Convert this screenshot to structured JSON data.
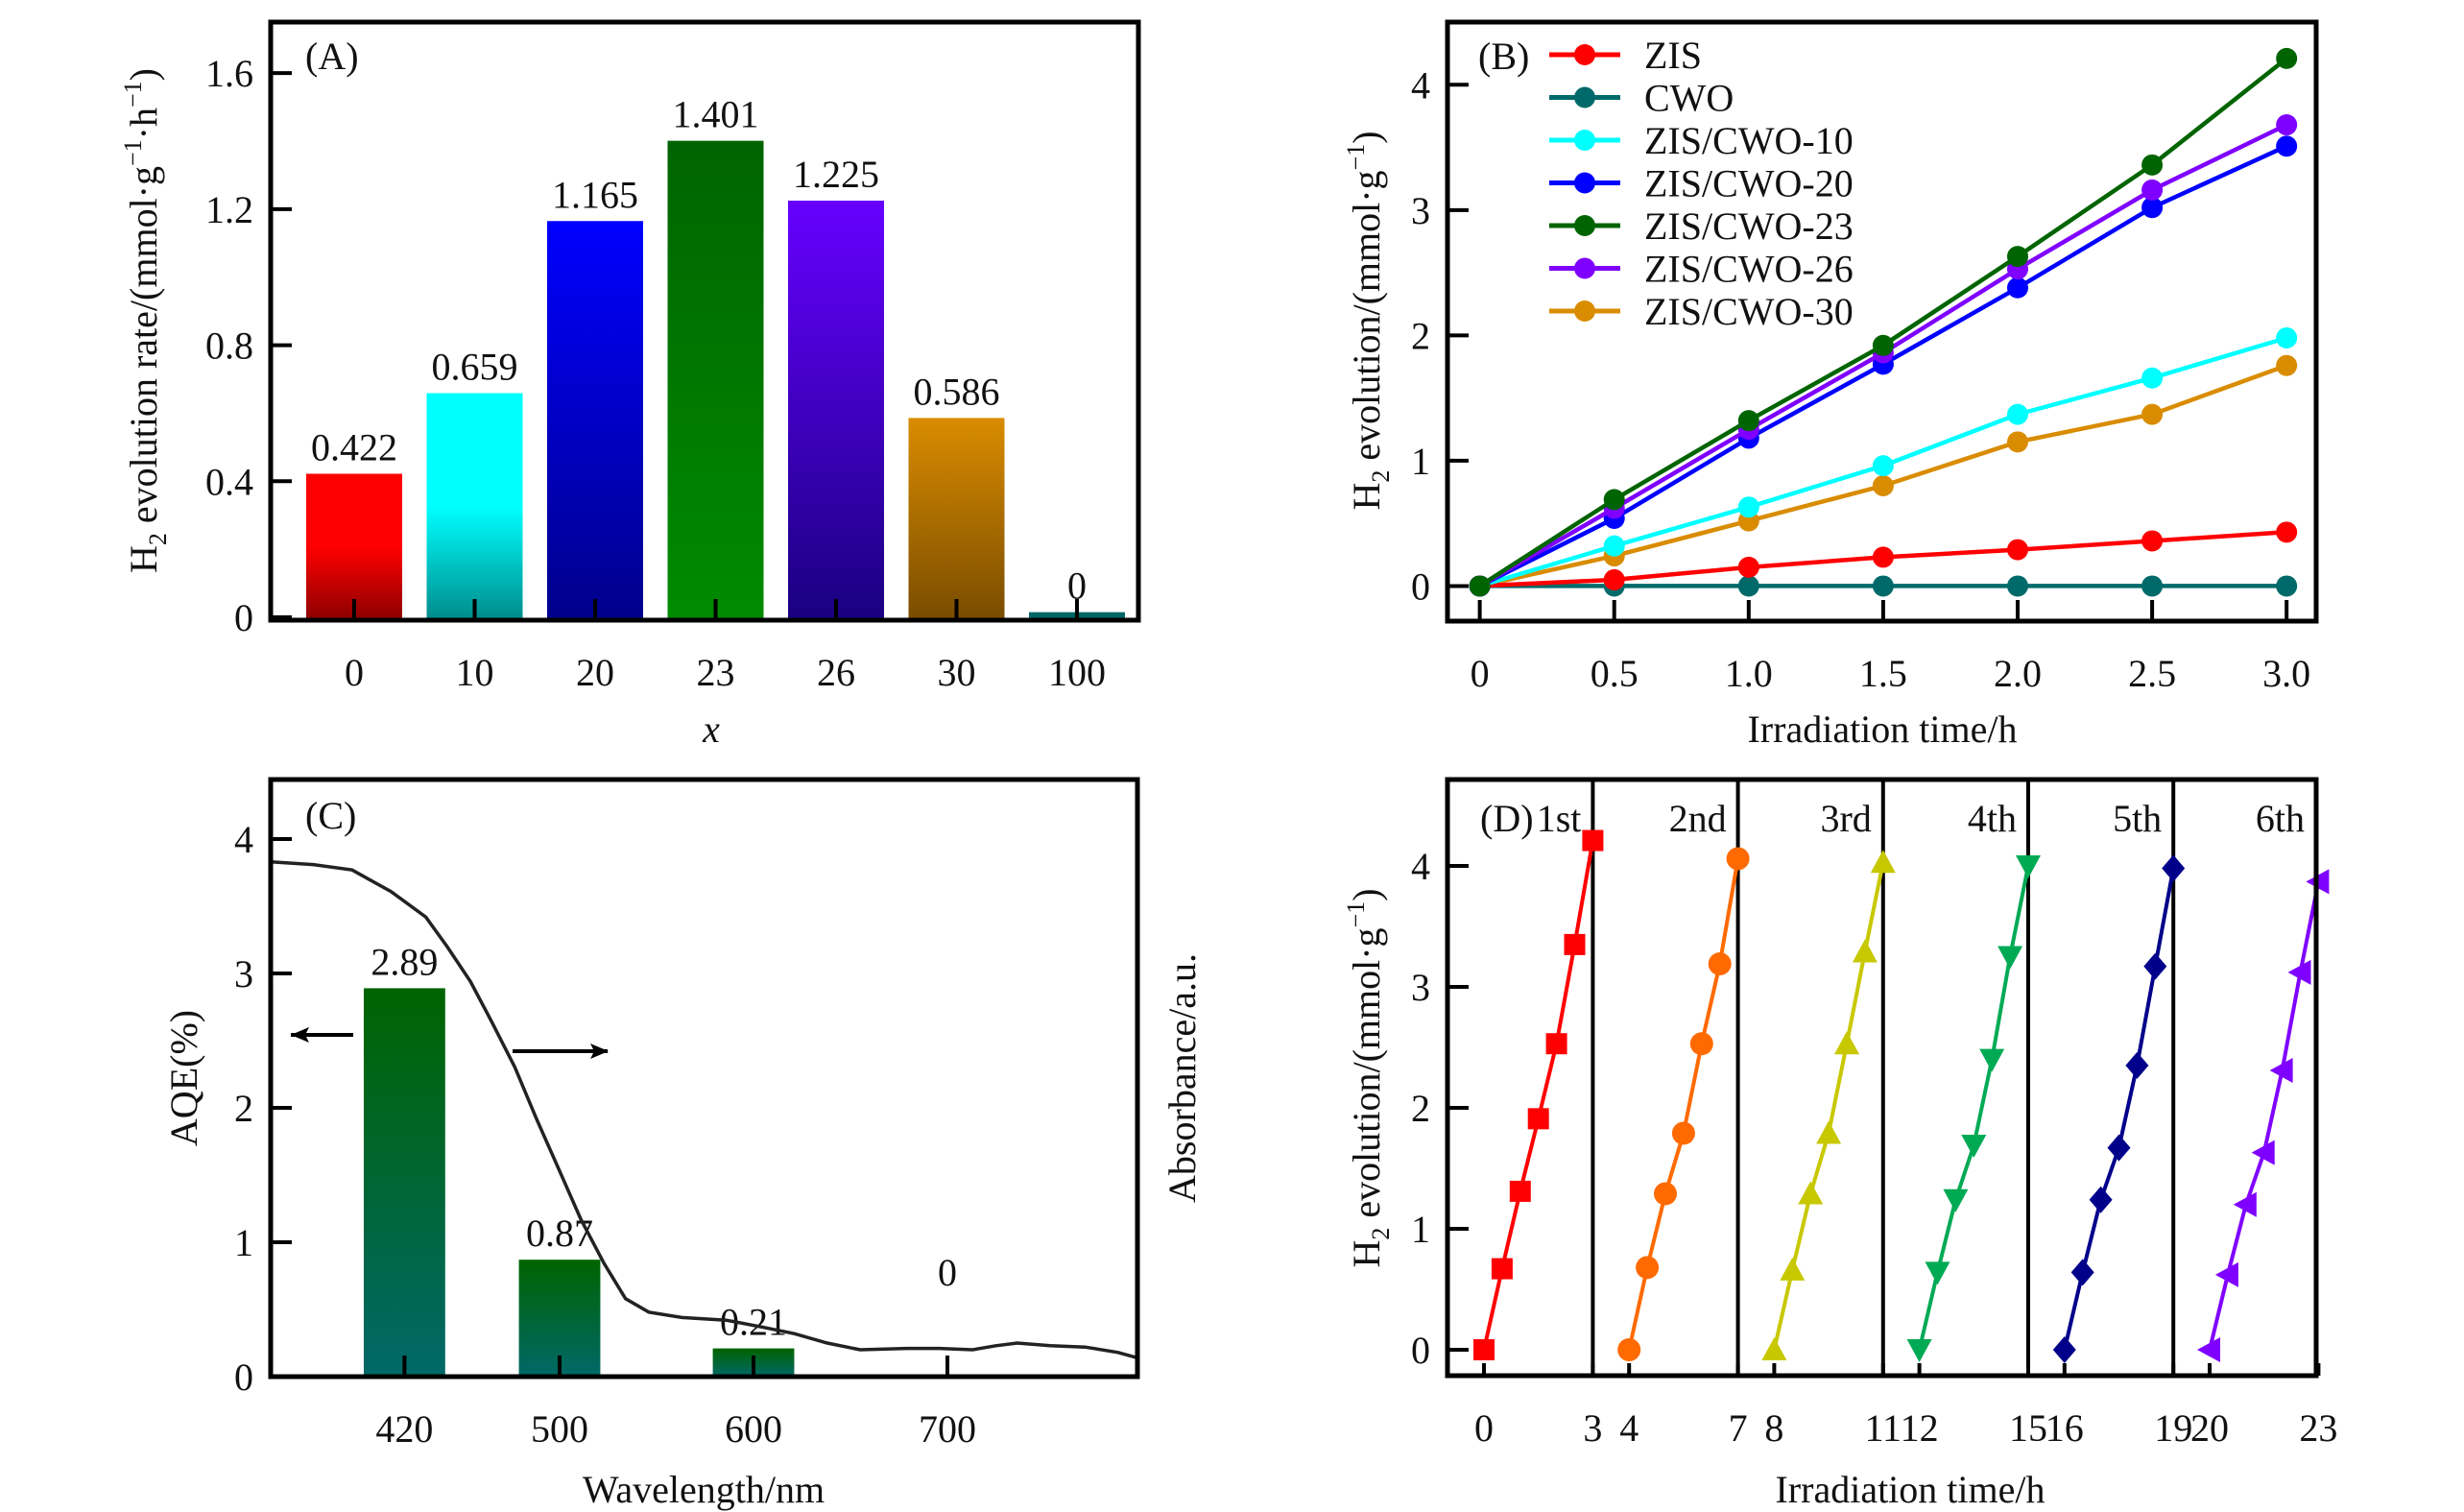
{
  "chart_data": [
    {
      "panel": "A",
      "type": "bar",
      "panel_label": "(A)",
      "title": "",
      "xlabel": "x",
      "ylabel_main": "H",
      "ylabel_sub": "2",
      "ylabel_rest": " evolution rate/(mmol·g",
      "ylabel_sup1": "−1",
      "ylabel_mid": "·h",
      "ylabel_sup2": "−1",
      "ylabel_end": ")",
      "categories": [
        "0",
        "10",
        "20",
        "23",
        "26",
        "30",
        "100"
      ],
      "values": [
        0.422,
        0.659,
        1.165,
        1.401,
        1.225,
        0.586,
        0.015
      ],
      "value_labels": [
        "0.422",
        "0.659",
        "1.165",
        "1.401",
        "1.225",
        "0.586",
        "0"
      ],
      "ylim": [
        0,
        1.75
      ],
      "yticks": [
        0,
        0.4,
        0.8,
        1.2,
        1.6
      ],
      "ytick_labels": [
        "0",
        "0.4",
        "0.8",
        "1.2",
        "1.6"
      ],
      "bar_colors": [
        {
          "top": "#ff0000",
          "bottom": "#8b0000"
        },
        {
          "top": "#00ffff",
          "bottom": "#008b8b"
        },
        {
          "top": "#0000ff",
          "bottom": "#00008b"
        },
        {
          "top": "#006400",
          "bottom": "#008b00"
        },
        {
          "top": "#6600ff",
          "bottom": "#1a0080"
        },
        {
          "top": "#d98c00",
          "bottom": "#7a4c00"
        },
        {
          "top": "#006666",
          "bottom": "#006666"
        }
      ],
      "grid": false
    },
    {
      "panel": "B",
      "type": "line",
      "panel_label": "(B)",
      "xlabel": "Irradiation time/h",
      "ylabel_main": "H",
      "ylabel_sub": "2",
      "ylabel_rest": " evolution/(mmol·g",
      "ylabel_sup1": "−1",
      "ylabel_end": ")",
      "x": [
        0,
        0.5,
        1.0,
        1.5,
        2.0,
        2.5,
        3.0
      ],
      "xlim": [
        -0.12,
        3.11
      ],
      "ylim": [
        -0.28,
        4.5
      ],
      "xticks": [
        0,
        0.5,
        1.0,
        1.5,
        2.0,
        2.5,
        3.0
      ],
      "xtick_labels": [
        "0",
        "0.5",
        "1.0",
        "1.5",
        "2.0",
        "2.5",
        "3.0"
      ],
      "yticks": [
        0,
        1,
        2,
        3,
        4
      ],
      "ytick_labels": [
        "0",
        "1",
        "2",
        "3",
        "4"
      ],
      "legend_position": "top-left",
      "series": [
        {
          "name": "ZIS",
          "color": "#ff0000",
          "values": [
            0,
            0.05,
            0.15,
            0.23,
            0.29,
            0.36,
            0.43
          ]
        },
        {
          "name": "CWO",
          "color": "#006a6a",
          "values": [
            0,
            0,
            0,
            0,
            0,
            0,
            0
          ]
        },
        {
          "name": "ZIS/CWO-10",
          "color": "#00ffff",
          "values": [
            0,
            0.32,
            0.63,
            0.96,
            1.37,
            1.66,
            1.98
          ]
        },
        {
          "name": "ZIS/CWO-20",
          "color": "#0000ff",
          "values": [
            0,
            0.54,
            1.18,
            1.77,
            2.38,
            3.02,
            3.51
          ]
        },
        {
          "name": "ZIS/CWO-23",
          "color": "#006400",
          "values": [
            0,
            0.69,
            1.32,
            1.92,
            2.63,
            3.36,
            4.21
          ]
        },
        {
          "name": "ZIS/CWO-26",
          "color": "#7f00ff",
          "values": [
            0,
            0.62,
            1.25,
            1.86,
            2.53,
            3.16,
            3.68
          ]
        },
        {
          "name": "ZIS/CWO-30",
          "color": "#d98c00",
          "values": [
            0,
            0.24,
            0.52,
            0.8,
            1.15,
            1.37,
            1.76
          ]
        }
      ],
      "grid": false
    },
    {
      "panel": "C",
      "type": "bar",
      "panel_label": "(C)",
      "xlabel": "Wavelength/nm",
      "ylabel": "AQE(%)",
      "ylabel_right": "Absorbance/a.u.",
      "categories": [
        420,
        500,
        600,
        700
      ],
      "values": [
        2.89,
        0.87,
        0.21,
        0
      ],
      "value_labels": [
        "2.89",
        "0.87",
        "0.21",
        "0"
      ],
      "bar_color": {
        "top": "#006400",
        "bottom": "#006868"
      },
      "bar_width_nm": 42,
      "xlim": [
        351,
        798
      ],
      "ylim": [
        0,
        4.45
      ],
      "xticks": [
        420,
        500,
        600,
        700
      ],
      "xtick_labels": [
        "420",
        "500",
        "600",
        "700"
      ],
      "yticks": [
        0,
        1,
        2,
        3,
        4
      ],
      "ytick_labels": [
        "0",
        "1",
        "2",
        "3",
        "4"
      ],
      "absorbance_curve": {
        "name": "Absorbance",
        "color": "#222222",
        "x": [
          350,
          373,
          393,
          413,
          431,
          442,
          454,
          465,
          477,
          488,
          500,
          511,
          523,
          534,
          546,
          563,
          586,
          604,
          621,
          638,
          655,
          679,
          696,
          713,
          725,
          736,
          753,
          771,
          788,
          800
        ],
        "y": [
          3.83,
          3.81,
          3.77,
          3.61,
          3.42,
          3.2,
          2.94,
          2.64,
          2.3,
          1.92,
          1.53,
          1.17,
          0.84,
          0.58,
          0.48,
          0.44,
          0.42,
          0.37,
          0.32,
          0.25,
          0.2,
          0.21,
          0.21,
          0.2,
          0.23,
          0.25,
          0.23,
          0.22,
          0.18,
          0.14
        ]
      },
      "annotations": [
        {
          "type": "arrow",
          "direction": "left",
          "meaning": "bars read on left axis (AQE)"
        },
        {
          "type": "arrow",
          "direction": "right",
          "meaning": "curve read on right axis (Absorbance)"
        }
      ],
      "grid": false
    },
    {
      "panel": "D",
      "type": "line",
      "panel_label": "(D)",
      "xlabel": "Irradiation time/h",
      "ylabel_main": "H",
      "ylabel_sub": "2",
      "ylabel_rest": " evolution/(mmol·g",
      "ylabel_sup1": "−1",
      "ylabel_end": ")",
      "xlim": [
        -0.9,
        23
      ],
      "ylim": [
        -0.22,
        4.67
      ],
      "xticks": [
        0,
        3,
        4,
        7,
        8,
        11,
        12,
        15,
        16,
        19,
        20,
        23
      ],
      "xtick_labels": [
        "0",
        "3",
        "4",
        "7",
        "8",
        "11",
        "12",
        "15",
        "16",
        "19",
        "20",
        "23"
      ],
      "yticks": [
        0,
        1,
        2,
        3,
        4
      ],
      "ytick_labels": [
        "0",
        "1",
        "2",
        "3",
        "4"
      ],
      "dividers": [
        3,
        7,
        11,
        15,
        19
      ],
      "cycles": [
        {
          "label": "1st",
          "marker": "square",
          "color": "#ff0000",
          "x": [
            0,
            0.5,
            1,
            1.5,
            2,
            2.5,
            3
          ],
          "values": [
            0,
            0.67,
            1.31,
            1.91,
            2.53,
            3.35,
            4.21
          ]
        },
        {
          "label": "2nd",
          "marker": "circle",
          "color": "#ff6a00",
          "x": [
            4,
            4.5,
            5,
            5.5,
            6,
            6.5,
            7
          ],
          "values": [
            0,
            0.68,
            1.29,
            1.79,
            2.53,
            3.19,
            4.06
          ]
        },
        {
          "label": "3rd",
          "marker": "triangle-up",
          "color": "#c8c800",
          "x": [
            8,
            8.5,
            9,
            9.5,
            10,
            10.5,
            11
          ],
          "values": [
            0,
            0.66,
            1.29,
            1.79,
            2.53,
            3.29,
            4.03
          ]
        },
        {
          "label": "4th",
          "marker": "triangle-down",
          "color": "#00aa55",
          "x": [
            12,
            12.5,
            13,
            13.5,
            14,
            14.5,
            15
          ],
          "values": [
            0,
            0.64,
            1.24,
            1.69,
            2.4,
            3.25,
            4.0
          ]
        },
        {
          "label": "5th",
          "marker": "diamond",
          "color": "#00008b",
          "x": [
            16,
            16.5,
            17,
            17.5,
            18,
            18.5,
            19
          ],
          "values": [
            0,
            0.64,
            1.24,
            1.67,
            2.35,
            3.17,
            3.98
          ]
        },
        {
          "label": "6th",
          "marker": "triangle-left",
          "color": "#7f00ff",
          "x": [
            20,
            20.5,
            21,
            21.5,
            22,
            22.5,
            23
          ],
          "values": [
            0,
            0.62,
            1.2,
            1.63,
            2.31,
            3.12,
            3.87
          ]
        }
      ],
      "grid": false
    }
  ]
}
